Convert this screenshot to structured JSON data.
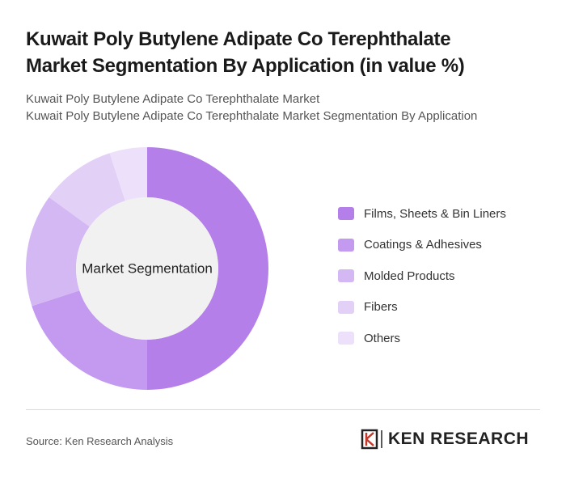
{
  "chart_data": {
    "type": "donut",
    "title": "Kuwait Poly Butylene Adipate Co Terephthalate Market Segmentation By Application (in value %)",
    "subtitle": [
      "Kuwait Poly Butylene Adipate Co Terephthalate Market",
      "Kuwait Poly Butylene Adipate Co Terephthalate Market Segmentation By Application"
    ],
    "center_label": "Market Segmentation",
    "categories": [
      "Films, Sheets & Bin Liners",
      "Coatings & Adhesives",
      "Molded Products",
      "Fibers",
      "Others"
    ],
    "values": [
      50,
      20,
      15,
      10,
      5
    ],
    "colors": [
      "#b57fea",
      "#c39af0",
      "#d4b8f4",
      "#e2d0f7",
      "#ece0fa"
    ],
    "legend": "right"
  },
  "footer": {
    "source": "Source: Ken Research Analysis",
    "logo": "KEN RESEARCH"
  }
}
